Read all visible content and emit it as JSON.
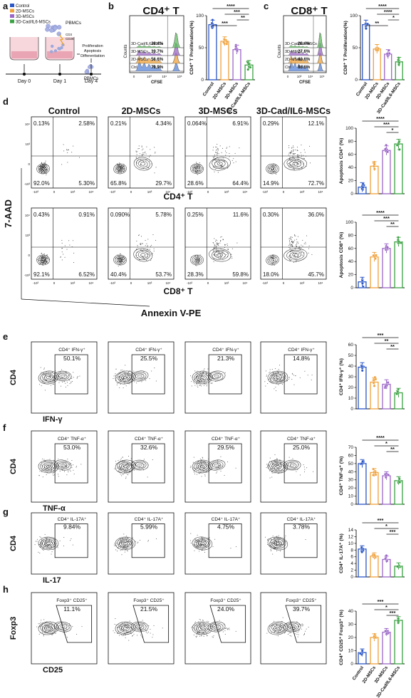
{
  "schematic": {
    "legend": [
      {
        "label": "Control",
        "color": "#2a56c6"
      },
      {
        "label": "2D-MSCs",
        "color": "#f0a13a"
      },
      {
        "label": "3D-MSCs",
        "color": "#9b66c7"
      },
      {
        "label": "3D-Cad/IL6-MSCs",
        "color": "#3aa142"
      }
    ],
    "pbmcs_label": "PBMCs",
    "stim_labels": [
      "CD3",
      "CD28"
    ],
    "readouts": [
      "Proliferation",
      "Apoptosis",
      "Differentiation"
    ],
    "end_label": "PBMCs",
    "days": [
      "Day 0",
      "Day 1",
      "Day 4"
    ]
  },
  "panels": {
    "a": "a",
    "b": "b",
    "c": "c",
    "d": "d",
    "e": "e",
    "f": "f",
    "g": "g",
    "h": "h"
  },
  "proliferation": {
    "cd4": {
      "title": "CD4⁺ T",
      "histograms": [
        {
          "label": "Ctrl",
          "value": "79.9%",
          "color": "#5a86d9"
        },
        {
          "label": "2D-MSCs",
          "value": "56.6%",
          "color": "#f0a13a"
        },
        {
          "label": "3D-MSCs",
          "value": "39.7%",
          "color": "#9b66c7"
        },
        {
          "label": "3D-Cad/IL6-MSCs",
          "value": "28.4%",
          "color": "#5fbf5f"
        }
      ],
      "axis_x": "CFSE",
      "axis_y": "Counts",
      "ticks": [
        "0",
        "10³",
        "10⁴",
        "10⁵"
      ]
    },
    "cd8": {
      "title": "CD8⁺ T",
      "histograms": [
        {
          "label": "Ctrl",
          "value": "86.6%",
          "color": "#5a86d9"
        },
        {
          "label": "2D-MSCs",
          "value": "40.6%",
          "color": "#f0a13a"
        },
        {
          "label": "3D-MSCs",
          "value": "27.6%",
          "color": "#9b66c7"
        },
        {
          "label": "3D-Cad/IL6-MSCs",
          "value": "28.4%",
          "color": "#5fbf5f"
        }
      ],
      "axis_x": "CFSE",
      "axis_y": "Counts",
      "ticks": [
        "0",
        "10³",
        "10⁴",
        "10⁵"
      ]
    }
  },
  "columns": [
    "Control",
    "2D-MSCs",
    "3D-MSCs",
    "3D-Cad/IL6-MSCs"
  ],
  "apoptosis": {
    "y_axis": "7-AAD",
    "x_axis": "Annexin V-PE",
    "cd4_label": "CD4⁺ T",
    "cd8_label": "CD8⁺ T",
    "cd4_quads": [
      [
        "0.13%",
        "2.58%",
        "92.0%",
        "5.30%"
      ],
      [
        "0.21%",
        "4.34%",
        "65.8%",
        "29.7%"
      ],
      [
        "0.064%",
        "6.91%",
        "28.6%",
        "64.4%"
      ],
      [
        "0.29%",
        "12.1%",
        "14.9%",
        "72.7%"
      ]
    ],
    "cd8_quads": [
      [
        "0.43%",
        "0.91%",
        "92.1%",
        "6.52%"
      ],
      [
        "0.090%",
        "5.78%",
        "40.4%",
        "53.7%"
      ],
      [
        "0.25%",
        "11.6%",
        "28.3%",
        "59.8%"
      ],
      [
        "0.30%",
        "36.0%",
        "18.0%",
        "45.7%"
      ]
    ],
    "y_ticks": [
      "10⁴",
      "10³",
      "0",
      "-10³"
    ],
    "x_ticks": [
      "-10³",
      "0",
      "10³",
      "10⁴"
    ]
  },
  "rows": {
    "e": {
      "y": "CD4",
      "x": "IFN-γ",
      "gate": "CD4⁺ IFN-γ⁺",
      "values": [
        "50.1%",
        "25.5%",
        "21.3%",
        "14.8%"
      ]
    },
    "f": {
      "y": "CD4",
      "x": "TNF-α",
      "gate": "CD4⁺ TNF-α⁺",
      "values": [
        "53.0%",
        "32.6%",
        "29.5%",
        "25.0%"
      ]
    },
    "g": {
      "y": "CD4",
      "x": "IL-17",
      "gate": "CD4⁺ IL-17A⁺",
      "values": [
        "9.84%",
        "5.99%",
        "4.75%",
        "3.78%"
      ]
    },
    "h": {
      "y": "Foxp3",
      "x": "CD25",
      "gate": "Foxp3⁺ CD25⁺",
      "values": [
        "11.1%",
        "21.5%",
        "24.0%",
        "39.7%"
      ]
    }
  },
  "sig_labels": {
    "b": [
      "****",
      "***",
      "**",
      "***"
    ],
    "c": [
      "****",
      "****",
      "*",
      "**"
    ],
    "d1": [
      "****",
      "***",
      "*"
    ],
    "d2": [
      "****",
      "***",
      "**"
    ],
    "e": [
      "***",
      "**",
      "**"
    ],
    "f": [
      "****",
      "*",
      "**"
    ],
    "g": [
      "***",
      "*",
      "***"
    ],
    "h": [
      "***",
      "*",
      "***"
    ]
  },
  "chart_data": [
    {
      "id": "b",
      "type": "bar",
      "categories": [
        "Control",
        "2D-MSCs",
        "3D-MSCs",
        "3D-Cad/IL6-MSCs"
      ],
      "ylabel": "CD4⁺ T Proliferation(%)",
      "ylim": [
        0,
        100
      ],
      "yticks": [
        0,
        50,
        100
      ],
      "values": [
        86,
        60,
        47,
        23
      ]
    },
    {
      "id": "c",
      "type": "bar",
      "categories": [
        "Control",
        "2D-MSCs",
        "3D-MSCs",
        "3D-Cad/IL6-MSCs"
      ],
      "ylabel": "CD8⁺ T Proliferation(%)",
      "ylim": [
        0,
        100
      ],
      "yticks": [
        0,
        50,
        100
      ],
      "values": [
        86,
        48,
        40,
        28
      ]
    },
    {
      "id": "d1",
      "type": "bar",
      "categories": [
        "Control",
        "2D-MSCs",
        "3D-MSCs",
        "3D-Cad/IL6-MSCs"
      ],
      "ylabel": "Apoptosis CD4⁺ (%)",
      "ylim": [
        0,
        100
      ],
      "yticks": [
        0,
        20,
        40,
        60,
        80,
        100
      ],
      "values": [
        10,
        42,
        66,
        76
      ]
    },
    {
      "id": "d2",
      "type": "bar",
      "categories": [
        "Control",
        "2D-MSCs",
        "3D-MSCs",
        "3D-Cad/IL6-MSCs"
      ],
      "ylabel": "Apoptosis CD8⁺ (%)",
      "ylim": [
        0,
        100
      ],
      "yticks": [
        0,
        20,
        40,
        60,
        80,
        100
      ],
      "values": [
        9,
        47,
        60,
        70
      ]
    },
    {
      "id": "e",
      "type": "bar",
      "categories": [
        "Control",
        "2D-MSCs",
        "3D-MSCs",
        "3D-Cad/IL6-MSCs"
      ],
      "ylabel": "CD4⁺ IFN-γ⁺ (%)",
      "ylim": [
        0,
        60
      ],
      "yticks": [
        0,
        10,
        20,
        30,
        40,
        50,
        60
      ],
      "values": [
        39,
        25,
        23,
        15
      ]
    },
    {
      "id": "f",
      "type": "bar",
      "categories": [
        "Control",
        "2D-MSCs",
        "3D-MSCs",
        "3D-Cad/IL6-MSCs"
      ],
      "ylabel": "CD4⁺ TNF-α⁺ (%)",
      "ylim": [
        0,
        70
      ],
      "yticks": [
        0,
        10,
        20,
        30,
        40,
        50,
        60,
        70
      ],
      "values": [
        50,
        39,
        35,
        29
      ]
    },
    {
      "id": "g",
      "type": "bar",
      "categories": [
        "Control",
        "2D-MSCs",
        "3D-MSCs",
        "3D-Cad/IL6-MSCs"
      ],
      "ylabel": "CD4⁺ IL-17A⁺ (%)",
      "ylim": [
        0,
        14
      ],
      "yticks": [
        0,
        2,
        4,
        6,
        8,
        10,
        12,
        14
      ],
      "values": [
        8.3,
        6.2,
        5.2,
        3.2
      ]
    },
    {
      "id": "h",
      "type": "bar",
      "categories": [
        "Control",
        "2D-MSCs",
        "3D-MSCs",
        "3D-Cad/IL6-MSCs"
      ],
      "ylabel": "CD4⁺ CD25⁺ Foxp3⁺ (%)",
      "ylim": [
        0,
        40
      ],
      "yticks": [
        0,
        10,
        20,
        30,
        40
      ],
      "values": [
        8.5,
        20,
        24,
        33
      ]
    }
  ]
}
